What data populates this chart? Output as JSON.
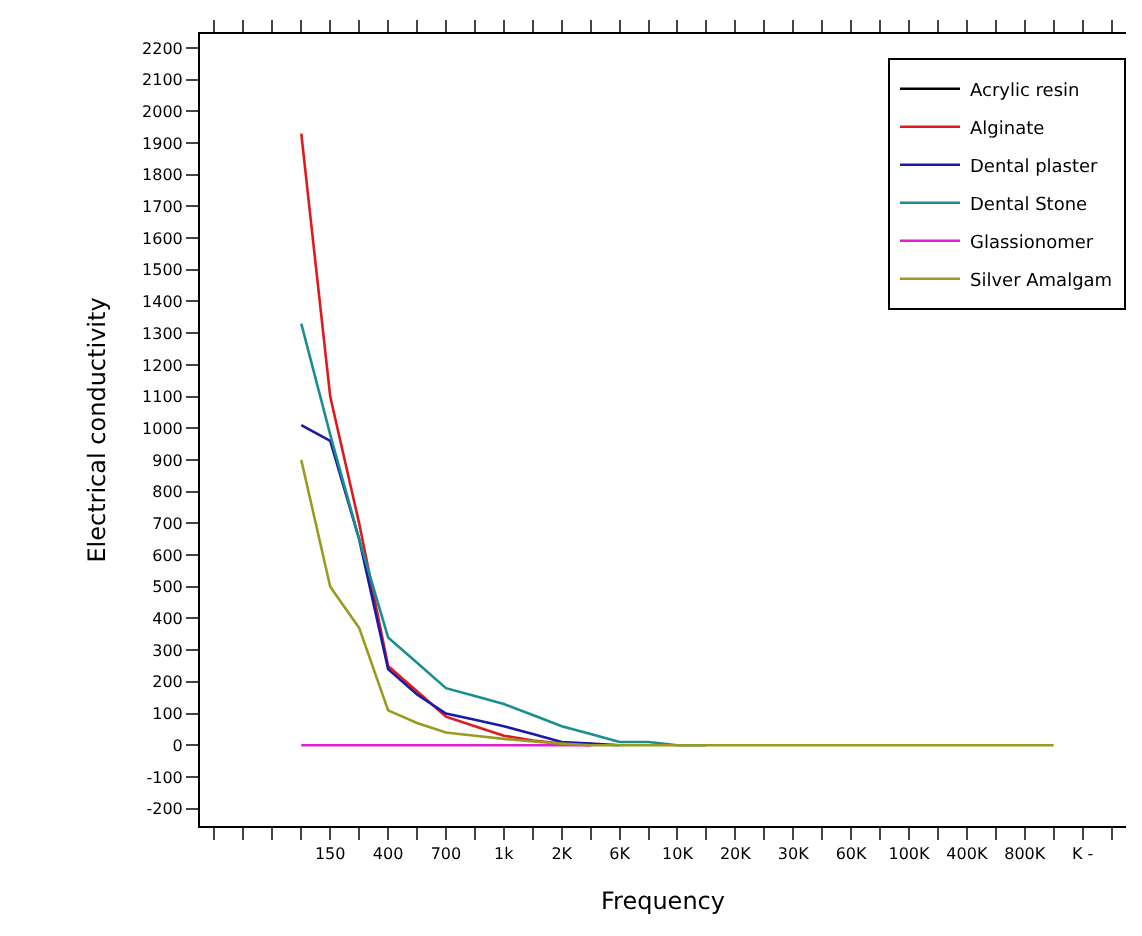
{
  "chart_data": {
    "type": "line",
    "xlabel": "Frequency",
    "ylabel": "Electrical conductivity",
    "categories": [
      null,
      null,
      null,
      null,
      "150",
      null,
      "400",
      null,
      "700",
      null,
      "1k",
      null,
      "2K",
      null,
      "6K",
      null,
      "10K",
      null,
      "20K",
      null,
      "30K",
      null,
      "60K",
      null,
      "100K",
      null,
      "400K",
      null,
      "800K",
      null,
      "K -",
      null
    ],
    "series": [
      {
        "name": "Acrylic resin",
        "color": "#000000",
        "values": [
          null,
          null,
          null,
          null,
          null,
          null,
          null,
          null,
          null,
          null,
          null,
          null,
          null,
          null,
          null,
          null,
          null,
          null,
          null,
          null,
          null,
          null,
          null,
          null,
          null,
          null,
          null,
          null,
          null,
          null,
          null,
          null
        ]
      },
      {
        "name": "Alginate",
        "color": "#e0191e",
        "values": [
          null,
          null,
          null,
          1930,
          1100,
          700,
          250,
          170,
          90,
          60,
          30,
          15,
          5,
          0,
          null,
          null,
          null,
          null,
          null,
          null,
          null,
          null,
          null,
          null,
          null,
          null,
          null,
          null,
          null,
          null,
          null,
          null
        ]
      },
      {
        "name": "Dental plaster",
        "color": "#1a1aa6",
        "values": [
          null,
          null,
          null,
          1010,
          960,
          650,
          240,
          160,
          100,
          80,
          60,
          35,
          10,
          5,
          0,
          null,
          null,
          null,
          null,
          null,
          null,
          null,
          null,
          null,
          null,
          null,
          null,
          null,
          null,
          null,
          null,
          null
        ]
      },
      {
        "name": "Dental Stone",
        "color": "#1a8f8f",
        "values": [
          null,
          null,
          null,
          1330,
          980,
          650,
          340,
          260,
          180,
          155,
          130,
          95,
          60,
          35,
          10,
          10,
          0,
          0,
          null,
          null,
          null,
          null,
          null,
          null,
          null,
          null,
          null,
          null,
          null,
          null,
          null,
          null
        ]
      },
      {
        "name": "Glassionomer",
        "color": "#e020d0",
        "values": [
          null,
          null,
          null,
          0,
          0,
          0,
          0,
          0,
          0,
          0,
          0,
          0,
          0,
          0,
          null,
          null,
          null,
          null,
          null,
          null,
          null,
          null,
          null,
          null,
          null,
          null,
          null,
          null,
          null,
          null,
          null,
          null
        ]
      },
      {
        "name": "Silver Amalgam",
        "color": "#9a9a20",
        "values": [
          null,
          null,
          null,
          900,
          500,
          370,
          110,
          70,
          40,
          30,
          20,
          12,
          5,
          0,
          0,
          0,
          0,
          0,
          0,
          0,
          0,
          0,
          0,
          0,
          0,
          0,
          0,
          0,
          0,
          0,
          null,
          null
        ]
      }
    ],
    "ylim": [
      -255,
      2244
    ],
    "yticks": [
      -200,
      -100,
      0,
      100,
      200,
      300,
      400,
      500,
      600,
      700,
      800,
      900,
      1000,
      1100,
      1200,
      1300,
      1400,
      1500,
      1600,
      1700,
      1800,
      1900,
      2000,
      2100,
      2200
    ],
    "legend": "top right",
    "marker": "none",
    "line_style": "solid"
  }
}
